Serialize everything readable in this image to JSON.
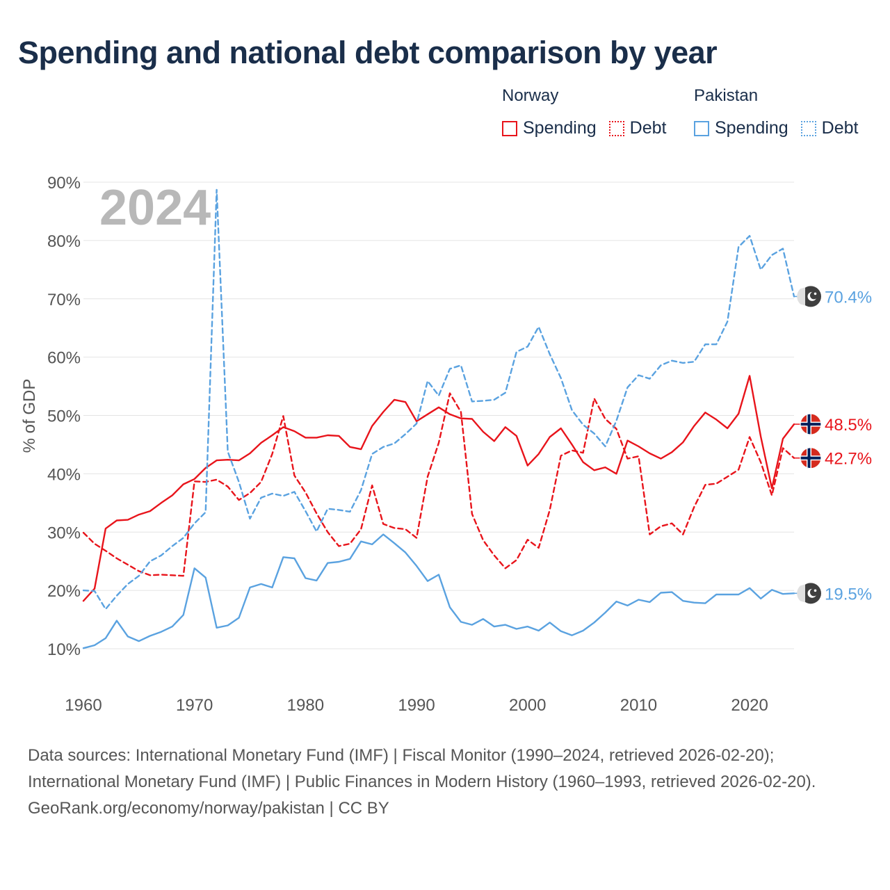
{
  "title": "Spending and national debt comparison by year",
  "legend": {
    "groups": [
      {
        "name": "Norway",
        "color": "#e8141b",
        "items": [
          {
            "label": "Spending",
            "style": "solid"
          },
          {
            "label": "Debt",
            "style": "dotted"
          }
        ]
      },
      {
        "name": "Pakistan",
        "color": "#5aa2e0",
        "items": [
          {
            "label": "Spending",
            "style": "solid"
          },
          {
            "label": "Debt",
            "style": "dotted"
          }
        ]
      }
    ]
  },
  "year_label": "2024",
  "footer": {
    "sources": "Data sources: International Monetary Fund (IMF) | Fiscal Monitor (1990–2024, retrieved 2026-02-20); International Monetary Fund (IMF) | Public Finances in Modern History (1960–1993, retrieved 2026-02-20).",
    "credit": "GeoRank.org/economy/norway/pakistan | CC BY"
  },
  "chart_data": {
    "type": "line",
    "title": "Spending and national debt comparison by year",
    "xlabel": "",
    "ylabel": "% of GDP",
    "xlim": [
      1960,
      2024
    ],
    "ylim": [
      10,
      90
    ],
    "xticks": [
      1960,
      1970,
      1980,
      1990,
      2000,
      2010,
      2020
    ],
    "yticks": [
      10,
      20,
      30,
      40,
      50,
      60,
      70,
      80,
      90
    ],
    "ytick_labels": [
      "10%",
      "20%",
      "30%",
      "40%",
      "50%",
      "60%",
      "70%",
      "80%",
      "90%"
    ],
    "grid": true,
    "x": [
      1960,
      1961,
      1962,
      1963,
      1964,
      1965,
      1966,
      1967,
      1968,
      1969,
      1970,
      1971,
      1972,
      1973,
      1974,
      1975,
      1976,
      1977,
      1978,
      1979,
      1980,
      1981,
      1982,
      1983,
      1984,
      1985,
      1986,
      1987,
      1988,
      1989,
      1990,
      1991,
      1992,
      1993,
      1994,
      1995,
      1996,
      1997,
      1998,
      1999,
      2000,
      2001,
      2002,
      2003,
      2004,
      2005,
      2006,
      2007,
      2008,
      2009,
      2010,
      2011,
      2012,
      2013,
      2014,
      2015,
      2016,
      2017,
      2018,
      2019,
      2020,
      2021,
      2022,
      2023,
      2024
    ],
    "series": [
      {
        "name": "Norway Spending",
        "country": "Norway",
        "metric": "Spending",
        "color": "#e8141b",
        "dash": "solid",
        "end_label": "48.5%",
        "values": [
          18.2,
          20.3,
          30.6,
          32.0,
          32.1,
          33.0,
          33.6,
          35.0,
          36.3,
          38.2,
          39.1,
          41.0,
          42.3,
          42.4,
          42.3,
          43.5,
          45.3,
          46.6,
          48.0,
          47.3,
          46.2,
          46.2,
          46.6,
          46.5,
          44.6,
          44.2,
          48.2,
          50.6,
          52.7,
          52.3,
          49.0,
          50.2,
          51.4,
          50.2,
          49.5,
          49.4,
          47.2,
          45.6,
          48.0,
          46.5,
          41.4,
          43.4,
          46.3,
          47.8,
          45.0,
          42.0,
          40.6,
          41.1,
          40.0,
          45.7,
          44.7,
          43.5,
          42.6,
          43.7,
          45.4,
          48.2,
          50.5,
          49.3,
          47.8,
          50.3,
          56.8,
          46.4,
          37.5,
          46.0,
          48.5
        ]
      },
      {
        "name": "Norway Debt",
        "country": "Norway",
        "metric": "Debt",
        "color": "#e8141b",
        "dash": "dashed",
        "end_label": "42.7%",
        "values": [
          29.9,
          28.0,
          26.8,
          25.5,
          24.4,
          23.3,
          22.6,
          22.7,
          22.6,
          22.5,
          38.7,
          38.6,
          39.0,
          37.8,
          35.5,
          36.7,
          38.6,
          43.4,
          49.9,
          39.7,
          36.8,
          33.2,
          30.0,
          27.6,
          28.0,
          30.5,
          38.0,
          31.4,
          30.7,
          30.5,
          29.0,
          39.5,
          45.3,
          53.8,
          50.6,
          33.1,
          28.6,
          26.0,
          23.8,
          25.2,
          28.7,
          27.3,
          33.8,
          43.1,
          44.0,
          43.6,
          52.9,
          49.4,
          47.7,
          42.6,
          43.0,
          29.6,
          31.0,
          31.5,
          29.6,
          34.3,
          38.1,
          38.3,
          39.5,
          40.7,
          46.3,
          42.0,
          36.3,
          44.4,
          42.7
        ]
      },
      {
        "name": "Pakistan Spending",
        "country": "Pakistan",
        "metric": "Spending",
        "color": "#5aa2e0",
        "dash": "solid",
        "end_label": "19.5%",
        "values": [
          10.1,
          10.6,
          11.8,
          14.8,
          12.1,
          11.3,
          12.2,
          12.9,
          13.8,
          15.8,
          23.8,
          22.2,
          13.6,
          14.0,
          15.3,
          20.5,
          21.1,
          20.5,
          25.7,
          25.5,
          22.1,
          21.7,
          24.7,
          24.9,
          25.4,
          28.4,
          27.9,
          29.6,
          28.1,
          26.5,
          24.2,
          21.6,
          22.7,
          17.1,
          14.6,
          14.1,
          15.1,
          13.8,
          14.1,
          13.4,
          13.8,
          13.1,
          14.5,
          13.0,
          12.3,
          13.1,
          14.5,
          16.2,
          18.1,
          17.4,
          18.4,
          18.0,
          19.6,
          19.7,
          18.2,
          17.9,
          17.8,
          19.3,
          19.3,
          19.3,
          20.4,
          18.6,
          20.1,
          19.4,
          19.5
        ]
      },
      {
        "name": "Pakistan Debt",
        "country": "Pakistan",
        "metric": "Debt",
        "color": "#5aa2e0",
        "dash": "dashed",
        "end_label": "70.4%",
        "values": [
          20.0,
          19.9,
          16.8,
          19.1,
          21.1,
          22.5,
          25.0,
          26.0,
          27.6,
          29.0,
          31.5,
          33.4,
          88.7,
          43.8,
          38.6,
          32.3,
          35.9,
          36.6,
          36.2,
          36.9,
          33.6,
          30.1,
          34.0,
          33.8,
          33.5,
          37.2,
          43.4,
          44.6,
          45.2,
          46.8,
          48.6,
          55.9,
          53.4,
          58.0,
          58.6,
          52.4,
          52.5,
          52.7,
          53.9,
          60.9,
          61.8,
          65.2,
          60.5,
          56.4,
          50.9,
          48.4,
          46.9,
          44.7,
          49.1,
          54.8,
          56.9,
          56.3,
          58.6,
          59.4,
          59.0,
          59.2,
          62.2,
          62.2,
          66.1,
          78.9,
          80.8,
          75.0,
          77.5,
          78.6,
          70.4
        ]
      }
    ]
  },
  "icons": {
    "norway": "norway-flag-icon",
    "pakistan": "pakistan-flag-icon"
  }
}
